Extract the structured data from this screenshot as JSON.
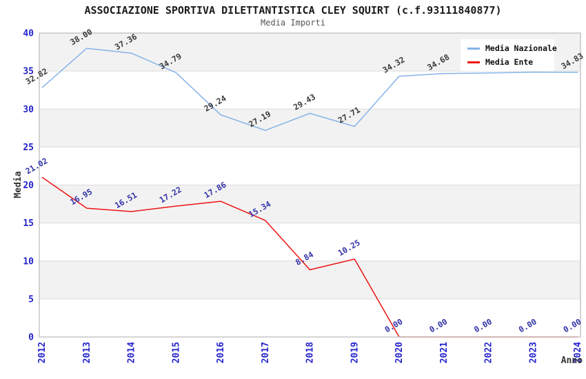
{
  "title": "ASSOCIAZIONE SPORTIVA DILETTANTISTICA CLEY SQUIRT (c.f.93111840877)",
  "subtitle": "Media Importi",
  "axes": {
    "ylabel": "Media",
    "xlabel": "Anno",
    "ymin": 0,
    "ymax": 40,
    "ystep": 5,
    "yticks": [
      "0",
      "5",
      "10",
      "15",
      "20",
      "25",
      "30",
      "35",
      "40"
    ]
  },
  "legend": {
    "items": [
      {
        "label": "Media Nazionale",
        "color": "#85b3e8"
      },
      {
        "label": "Media Ente",
        "color": "#ee1111"
      }
    ]
  },
  "chart_data": {
    "type": "line",
    "x": [
      "2012",
      "2013",
      "2014",
      "2015",
      "2016",
      "2017",
      "2018",
      "2019",
      "2020",
      "2021",
      "2022",
      "2023",
      "2024"
    ],
    "series": [
      {
        "name": "Media Nazionale",
        "color": "#85b3e8",
        "label_color": "#3a3a3a",
        "values": [
          32.82,
          38.0,
          37.36,
          34.79,
          29.24,
          27.19,
          29.43,
          27.71,
          34.32,
          34.68,
          34.75,
          34.85,
          34.83
        ],
        "labels": [
          "32.82",
          "38.00",
          "37.36",
          "34.79",
          "29.24",
          "27.19",
          "29.43",
          "27.71",
          "34.32",
          "34.68",
          null,
          null,
          "34.83"
        ]
      },
      {
        "name": "Media Ente",
        "color": "#ee1111",
        "label_color": "#3333aa",
        "values": [
          21.02,
          16.95,
          16.51,
          17.22,
          17.86,
          15.34,
          8.84,
          10.25,
          0.0,
          0.0,
          0.0,
          0.0,
          0.0
        ],
        "labels": [
          "21.02",
          "16.95",
          "16.51",
          "17.22",
          "17.86",
          "15.34",
          "8.84",
          "10.25",
          "0.00",
          "0.00",
          "0.00",
          "0.00",
          "0.00"
        ]
      }
    ],
    "title": "Media Importi",
    "xlabel": "Anno",
    "ylabel": "Media",
    "ylim": [
      0,
      40
    ],
    "grid": "horizontal, every 5 units, alternating shaded bands",
    "legend_position": "top-right inside plot"
  },
  "colors": {
    "band": "#f2f2f2",
    "grid": "#dcdcdc",
    "plot_border": "#c6c6c6",
    "tick_label": "#2323cc",
    "axis_title": "#333333"
  }
}
